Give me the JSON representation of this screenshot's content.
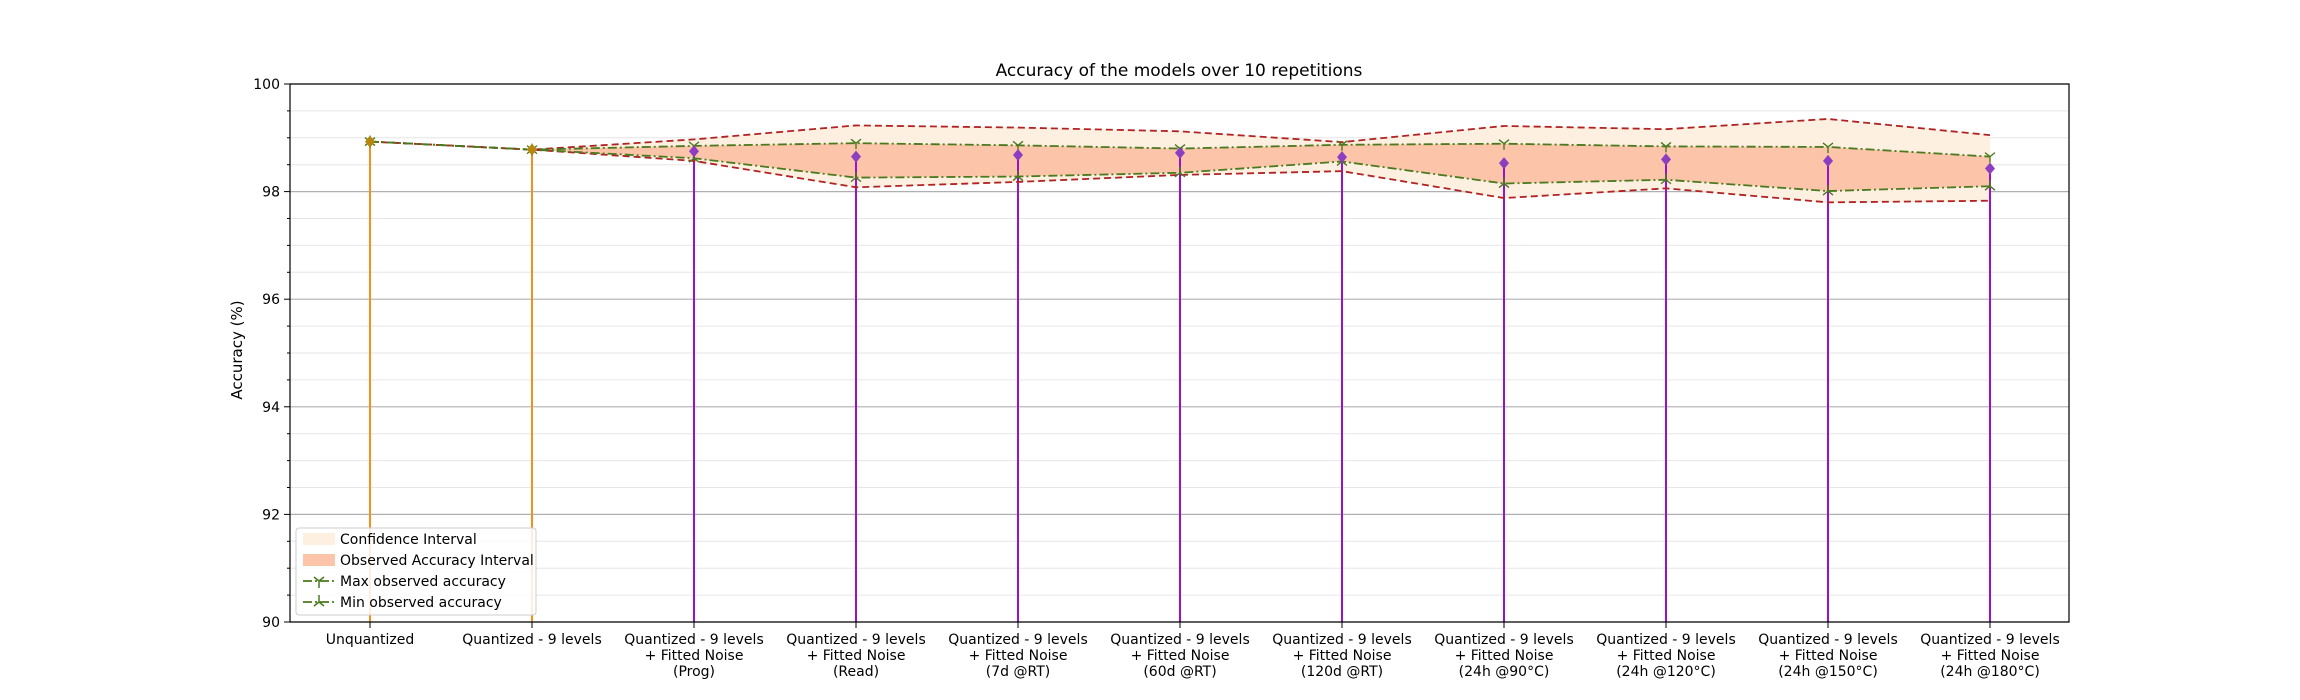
{
  "chart_data": {
    "type": "line",
    "title": "Accuracy of the models over 10 repetitions",
    "xlabel": "",
    "ylabel": "Accuracy (%)",
    "ylim": [
      90,
      100
    ],
    "yticks": [
      "90",
      "92",
      "94",
      "96",
      "98",
      "100"
    ],
    "grid": {
      "major": true,
      "minor": true
    },
    "legend_position": "bottom-left",
    "categories": [
      "Unquantized",
      "Quantized - 9 levels",
      "Quantized - 9 levels\n+ Fitted Noise\n(Prog)",
      "Quantized - 9 levels\n+ Fitted Noise\n(Read)",
      "Quantized - 9 levels\n+ Fitted Noise\n(7d @RT)",
      "Quantized - 9 levels\n+ Fitted Noise\n(60d @RT)",
      "Quantized - 9 levels\n+ Fitted Noise\n(120d @RT)",
      "Quantized - 9 levels\n+ Fitted Noise\n(24h @90°C)",
      "Quantized - 9 levels\n+ Fitted Noise\n(24h @120°C)",
      "Quantized - 9 levels\n+ Fitted Noise\n(24h @150°C)",
      "Quantized - 9 levels\n+ Fitted Noise\n(24h @180°C)"
    ],
    "mean": [
      98.93,
      98.78,
      98.75,
      98.65,
      98.68,
      98.72,
      98.64,
      98.53,
      98.6,
      98.57,
      98.43
    ],
    "confidence_upper": [
      98.93,
      98.78,
      98.97,
      99.23,
      99.19,
      99.12,
      98.92,
      99.22,
      99.16,
      99.35,
      99.05
    ],
    "confidence_lower": [
      98.93,
      98.78,
      98.57,
      98.08,
      98.18,
      98.31,
      98.38,
      97.88,
      98.06,
      97.8,
      97.83
    ],
    "max_observed": [
      98.93,
      98.78,
      98.85,
      98.9,
      98.86,
      98.8,
      98.87,
      98.89,
      98.84,
      98.83,
      98.65
    ],
    "min_observed": [
      98.93,
      98.78,
      98.62,
      98.26,
      98.28,
      98.35,
      98.56,
      98.15,
      98.22,
      98.01,
      98.1
    ],
    "legend": [
      {
        "label": "Confidence Interval"
      },
      {
        "label": "Observed Accuracy Interval"
      },
      {
        "label": "Max observed accuracy"
      },
      {
        "label": "Min observed accuracy"
      }
    ],
    "colors": {
      "confidence_fill": "#fdf0e0",
      "observed_fill": "#fcc5aa",
      "bound_line": "#b22222",
      "max_min_line": "#4a7a1e",
      "stem_orange": "#f5901e",
      "stem_purple": "#9b10c9",
      "mean_marker_orange": "#b8860b",
      "mean_marker_purple": "#8b3ec0"
    }
  }
}
